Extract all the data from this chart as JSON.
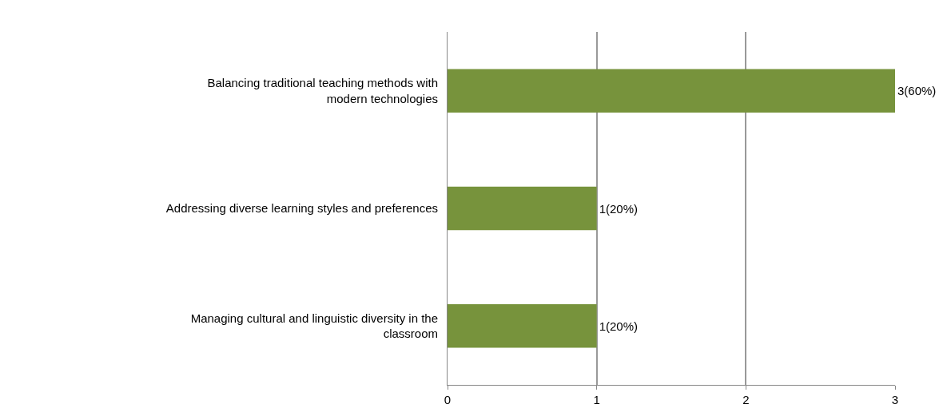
{
  "chart_data": {
    "type": "bar",
    "orientation": "horizontal",
    "categories": [
      "Balancing traditional teaching methods with\nmodern technologies",
      "Addressing diverse learning styles and preferences",
      "Managing cultural and linguistic diversity in the\nclassroom"
    ],
    "values": [
      3,
      1,
      1
    ],
    "color": "#77933c",
    "value_labels": [
      "3(60%)",
      "1(20%)",
      "1(20%)"
    ],
    "xlim": [
      0,
      3
    ],
    "xticks": [
      0,
      1,
      2,
      3
    ],
    "grid": "x",
    "legend": false
  }
}
